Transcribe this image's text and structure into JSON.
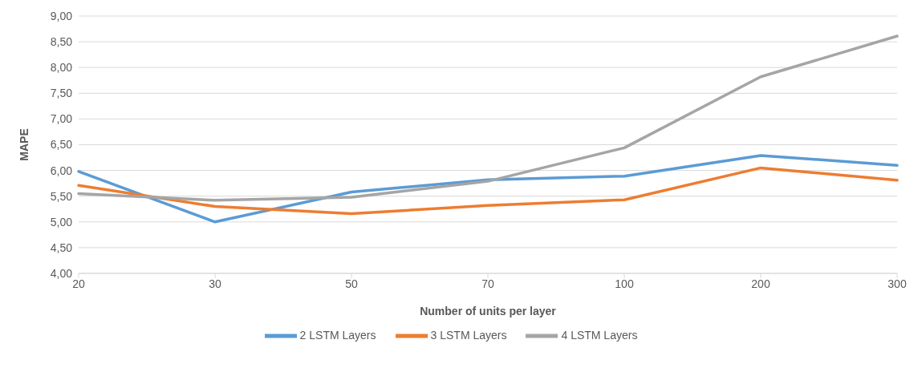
{
  "chart_data": {
    "type": "line",
    "xlabel": "Number of units per layer",
    "ylabel": "MAPE",
    "categories": [
      "20",
      "30",
      "50",
      "70",
      "100",
      "200",
      "300"
    ],
    "series": [
      {
        "name": "2 LSTM Layers",
        "color": "#5b9bd5",
        "values": [
          5.98,
          5.0,
          5.58,
          5.82,
          5.89,
          6.29,
          6.1
        ]
      },
      {
        "name": "3 LSTM Layers",
        "color": "#ed7d31",
        "values": [
          5.71,
          5.3,
          5.16,
          5.32,
          5.43,
          6.05,
          5.81
        ]
      },
      {
        "name": "4 LSTM Layers",
        "color": "#a5a5a5",
        "values": [
          5.55,
          5.42,
          5.48,
          5.79,
          6.44,
          7.82,
          8.61
        ]
      }
    ],
    "ylim": [
      4,
      9
    ],
    "yticks": [
      {
        "value": 4,
        "label": "4,00"
      },
      {
        "value": 4.5,
        "label": "4,50"
      },
      {
        "value": 5,
        "label": "5,00"
      },
      {
        "value": 5.5,
        "label": "5,50"
      },
      {
        "value": 6,
        "label": "6,00"
      },
      {
        "value": 6.5,
        "label": "6,50"
      },
      {
        "value": 7,
        "label": "7,00"
      },
      {
        "value": 7.5,
        "label": "7,50"
      },
      {
        "value": 8,
        "label": "8,00"
      },
      {
        "value": 8.5,
        "label": "8,50"
      },
      {
        "value": 9,
        "label": "9,00"
      }
    ],
    "grid": "y",
    "legend": "bottom",
    "marker": "none",
    "line_style": "solid"
  }
}
